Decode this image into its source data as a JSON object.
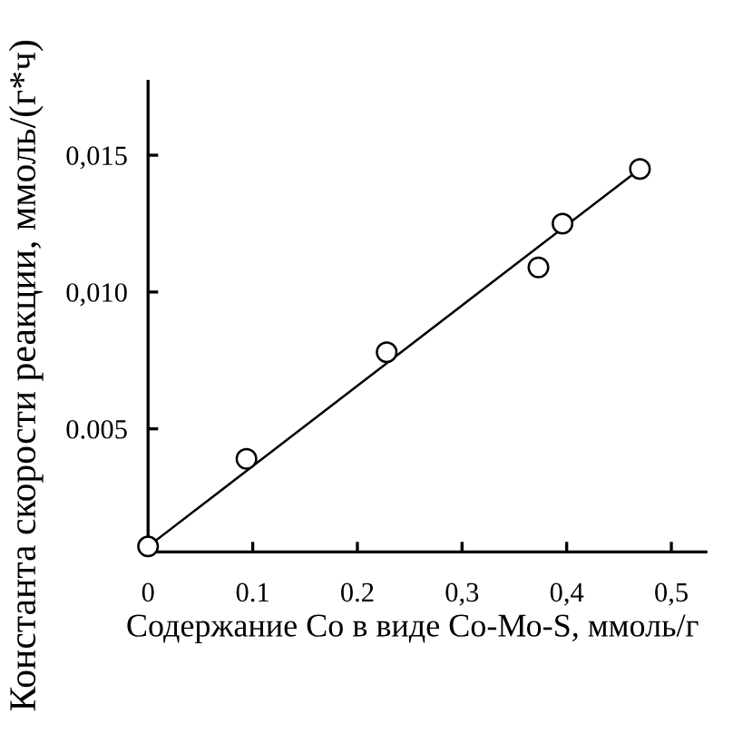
{
  "chart_data": {
    "type": "scatter",
    "xlabel": "Содержание Со в виде Со-Мо-S, ммоль/г",
    "ylabel": "Константа скорости реакции, ммоль/(г*ч)",
    "xlim": [
      0,
      0.533
    ],
    "ylim": [
      0.0005,
      0.0177
    ],
    "xticks": [
      0,
      0.1,
      0.2,
      {
        "value": 0.3,
        "label": "0,3"
      },
      {
        "value": 0.4,
        "label": "0,4"
      },
      {
        "value": 0.5,
        "label": "0,5"
      }
    ],
    "yticks": [
      0.005,
      {
        "value": 0.01,
        "label": "0,010"
      },
      {
        "value": 0.015,
        "label": "0,015"
      }
    ],
    "series": [
      {
        "x": [
          0,
          0.094,
          0.228,
          0.373,
          0.396,
          0.47
        ],
        "values": [
          0.0007,
          0.0039,
          0.0078,
          0.0109,
          0.0125,
          0.0145
        ],
        "color": "#000000",
        "marker": "circle"
      },
      {
        "type": "line",
        "x": [
          0,
          0.47
        ],
        "values": [
          0.0007,
          0.0145
        ],
        "color": "#000000",
        "marker": "none",
        "line_style": "solid"
      }
    ]
  }
}
